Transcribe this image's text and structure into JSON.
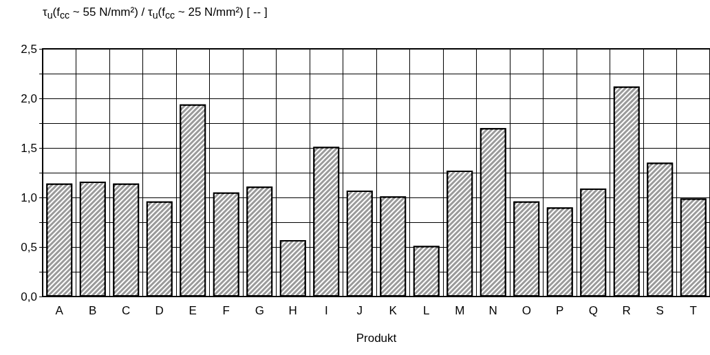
{
  "chart_data": {
    "type": "bar",
    "ylabel": "τ$_{u}$(f$_{cc}$ ~ 55 N/mm²) / τ$_{u}$(f$_{cc}$ ~ 25 N/mm²)  [ -- ]",
    "xlabel": "Produkt",
    "categories": [
      "A",
      "B",
      "C",
      "D",
      "E",
      "F",
      "G",
      "H",
      "I",
      "J",
      "K",
      "L",
      "M",
      "N",
      "O",
      "P",
      "Q",
      "R",
      "S",
      "T"
    ],
    "values": [
      1.14,
      1.16,
      1.14,
      0.96,
      1.94,
      1.05,
      1.11,
      0.57,
      1.51,
      1.07,
      1.01,
      0.51,
      1.27,
      1.7,
      0.96,
      0.9,
      1.09,
      2.12,
      1.35,
      0.99
    ],
    "color": "#9a9a9a",
    "ylim": [
      0,
      2.5
    ],
    "yticks": [
      {
        "value": 0,
        "label": "0,0"
      },
      {
        "value": 0.25,
        "label": null
      },
      {
        "value": 0.5,
        "label": "0,5"
      },
      {
        "value": 0.75,
        "label": null
      },
      {
        "value": 1,
        "label": "1,0"
      },
      {
        "value": 1.25,
        "label": null
      },
      {
        "value": 1.5,
        "label": "1,5"
      },
      {
        "value": 1.75,
        "label": null
      },
      {
        "value": 2,
        "label": "2,0"
      },
      {
        "value": 2.25,
        "label": null
      },
      {
        "value": 2.5,
        "label": "2,5"
      }
    ],
    "grid": true
  }
}
